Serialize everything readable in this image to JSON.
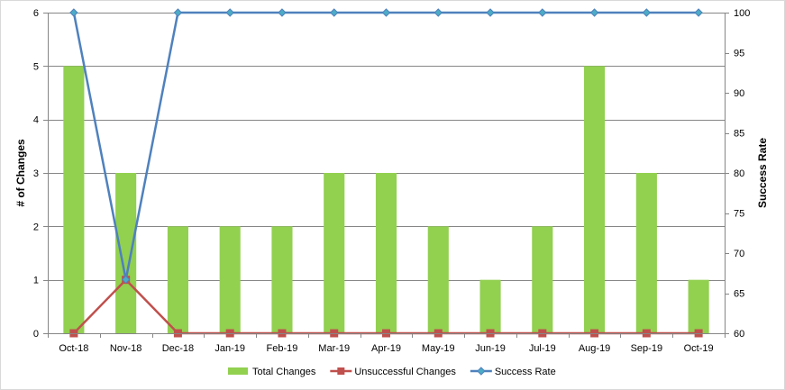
{
  "chart_data": {
    "type": "bar",
    "categories": [
      "Oct-18",
      "Nov-18",
      "Dec-18",
      "Jan-19",
      "Feb-19",
      "Mar-19",
      "Apr-19",
      "May-19",
      "Jun-19",
      "Jul-19",
      "Aug-19",
      "Sep-19",
      "Oct-19"
    ],
    "series": [
      {
        "name": "Total Changes",
        "type": "bar",
        "axis": "left",
        "color": "#92d050",
        "values": [
          5,
          3,
          2,
          2,
          2,
          3,
          3,
          2,
          1,
          2,
          5,
          3,
          1
        ]
      },
      {
        "name": "Unsuccessful Changes",
        "type": "line",
        "marker": "square",
        "axis": "left",
        "color": "#c0504d",
        "values": [
          0,
          1,
          0,
          0,
          0,
          0,
          0,
          0,
          0,
          0,
          0,
          0,
          0
        ]
      },
      {
        "name": "Success Rate",
        "type": "line",
        "marker": "diamond",
        "axis": "right",
        "color": "#4f81bd",
        "values": [
          100,
          66.7,
          100,
          100,
          100,
          100,
          100,
          100,
          100,
          100,
          100,
          100,
          100
        ]
      }
    ],
    "ylabel": "# of Changes",
    "ylim": [
      0,
      6
    ],
    "yticks": [
      "0",
      "1",
      "2",
      "3",
      "4",
      "5",
      "6"
    ],
    "y2label": "Success Rate",
    "y2lim": [
      60,
      100
    ],
    "y2ticks": [
      "60",
      "65",
      "70",
      "75",
      "80",
      "85",
      "90",
      "95",
      "100"
    ],
    "grid": true,
    "legend_position": "bottom"
  }
}
